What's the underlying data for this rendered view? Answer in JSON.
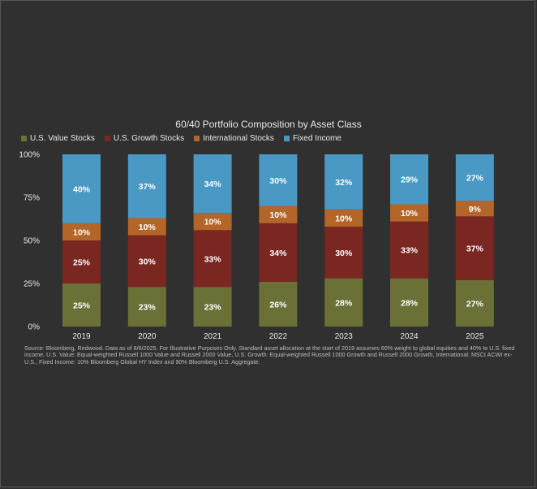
{
  "chart_data": {
    "type": "bar",
    "stacked": true,
    "title": "60/40 Portfolio Composition by Asset Class",
    "categories": [
      "2019",
      "2020",
      "2021",
      "2022",
      "2023",
      "2024",
      "2025"
    ],
    "series": [
      {
        "name": "U.S. Value Stocks",
        "color": "#6b7037",
        "values": [
          25,
          23,
          23,
          26,
          28,
          28,
          27
        ]
      },
      {
        "name": "U.S. Growth Stocks",
        "color": "#7a2722",
        "values": [
          25,
          30,
          33,
          34,
          30,
          33,
          37
        ]
      },
      {
        "name": "International Stocks",
        "color": "#b4652a",
        "values": [
          10,
          10,
          10,
          10,
          10,
          10,
          9
        ]
      },
      {
        "name": "Fixed Income",
        "color": "#4a99c4",
        "values": [
          40,
          37,
          34,
          30,
          32,
          29,
          27
        ]
      }
    ],
    "yticks": [
      "0%",
      "25%",
      "50%",
      "75%",
      "100%"
    ],
    "ylim": [
      0,
      100
    ],
    "legend_position": "top-left",
    "grid": false
  },
  "source_note": "Source: Bloomberg, Redwood. Data as of 8/6/2025. For Illustrative Purposes Only. Standard asset allocation at the start of 2019 assumes 60% weight to global equities and 40% to U.S. fixed income. U.S. Value: Equal-weighted Russell 1000 Value and Russell 2000 Value, U.S. Growth: Equal-weighted Russell 1000 Growth and Russell 2000 Growth, International: MSCI ACWI ex-U.S., Fixed Income: 10% Bloomberg Global HY Index and 90% Bloomberg U.S. Aggregate."
}
